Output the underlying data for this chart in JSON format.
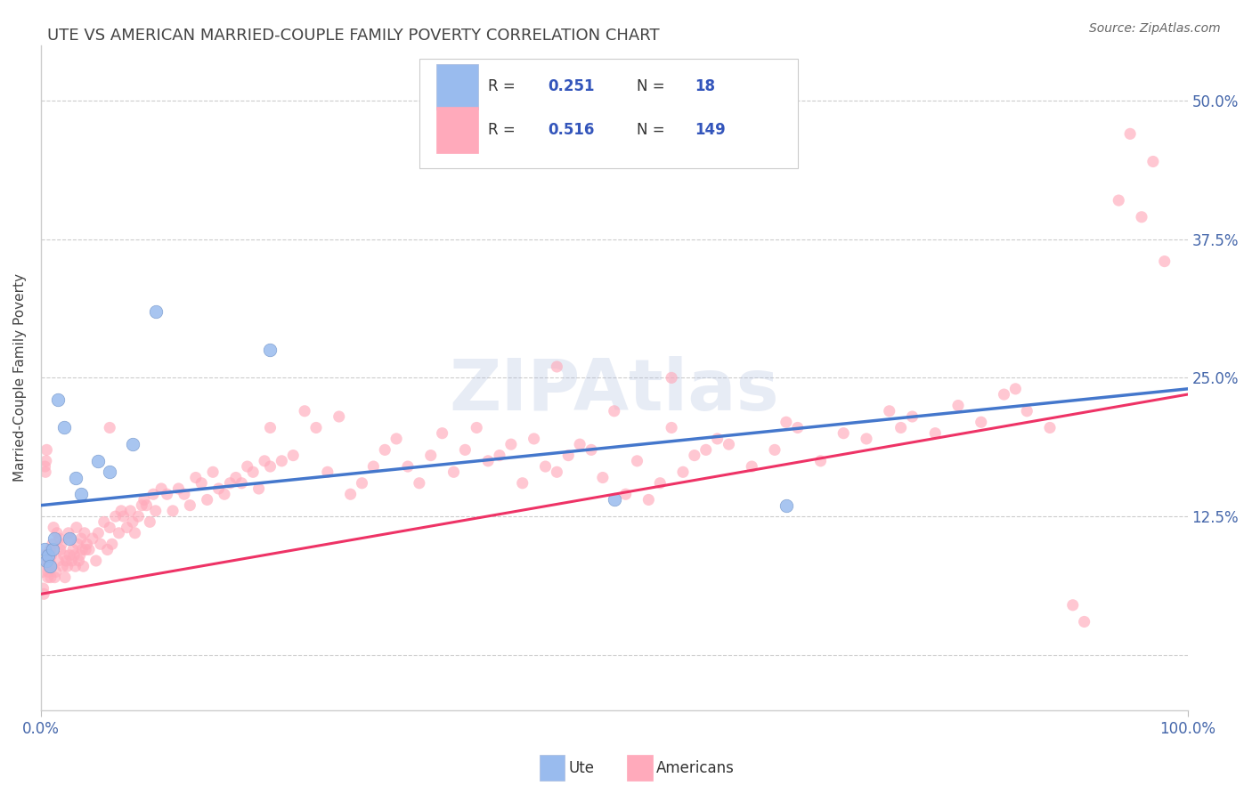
{
  "title": "UTE VS AMERICAN MARRIED-COUPLE FAMILY POVERTY CORRELATION CHART",
  "source_text": "Source: ZipAtlas.com",
  "ylabel": "Married-Couple Family Poverty",
  "xlim": [
    0.0,
    100.0
  ],
  "ylim": [
    -5.0,
    55.0
  ],
  "yticks": [
    0.0,
    12.5,
    25.0,
    37.5,
    50.0
  ],
  "ytick_labels": [
    "",
    "12.5%",
    "25.0%",
    "37.5%",
    "50.0%"
  ],
  "background_color": "#ffffff",
  "grid_color": "#cccccc",
  "color_ute": "#99bbee",
  "color_ute_edge": "#7799cc",
  "color_americans": "#ffaabb",
  "color_americans_edge": "#ff88aa",
  "color_ute_line": "#4477cc",
  "color_americans_line": "#ee3366",
  "color_ute_line_dashed": "#aaaacc",
  "title_color": "#444444",
  "title_fontsize": 13,
  "tick_label_color": "#4466aa",
  "legend_text_color_label": "#333333",
  "legend_text_color_value": "#3355bb",
  "ute_reg_x0": 0.0,
  "ute_reg_y0": 13.5,
  "ute_reg_x1": 100.0,
  "ute_reg_y1": 24.0,
  "americans_reg_x0": 0.0,
  "americans_reg_y0": 5.5,
  "americans_reg_x1": 100.0,
  "americans_reg_y1": 23.5,
  "ute_scatter": [
    [
      0.3,
      9.5
    ],
    [
      0.5,
      8.5
    ],
    [
      0.6,
      9.0
    ],
    [
      0.8,
      8.0
    ],
    [
      1.0,
      9.5
    ],
    [
      1.2,
      10.5
    ],
    [
      1.5,
      23.0
    ],
    [
      2.0,
      20.5
    ],
    [
      2.5,
      10.5
    ],
    [
      3.0,
      16.0
    ],
    [
      3.5,
      14.5
    ],
    [
      5.0,
      17.5
    ],
    [
      6.0,
      16.5
    ],
    [
      8.0,
      19.0
    ],
    [
      10.0,
      31.0
    ],
    [
      20.0,
      27.5
    ],
    [
      50.0,
      14.0
    ],
    [
      65.0,
      13.5
    ]
  ],
  "americans_scatter": [
    [
      0.1,
      8.5
    ],
    [
      0.15,
      7.5
    ],
    [
      0.2,
      6.0
    ],
    [
      0.25,
      5.5
    ],
    [
      0.3,
      9.0
    ],
    [
      0.35,
      17.0
    ],
    [
      0.4,
      16.5
    ],
    [
      0.45,
      17.5
    ],
    [
      0.5,
      18.5
    ],
    [
      0.55,
      8.5
    ],
    [
      0.6,
      7.0
    ],
    [
      0.65,
      7.5
    ],
    [
      0.7,
      8.0
    ],
    [
      0.75,
      8.5
    ],
    [
      0.8,
      9.5
    ],
    [
      0.85,
      7.0
    ],
    [
      0.9,
      9.0
    ],
    [
      0.95,
      8.0
    ],
    [
      1.0,
      10.0
    ],
    [
      1.1,
      11.5
    ],
    [
      1.2,
      7.0
    ],
    [
      1.3,
      7.5
    ],
    [
      1.4,
      11.0
    ],
    [
      1.5,
      8.5
    ],
    [
      1.6,
      10.5
    ],
    [
      1.7,
      9.5
    ],
    [
      1.8,
      10.0
    ],
    [
      1.9,
      8.0
    ],
    [
      2.0,
      9.0
    ],
    [
      2.1,
      7.0
    ],
    [
      2.2,
      8.5
    ],
    [
      2.3,
      8.0
    ],
    [
      2.4,
      11.0
    ],
    [
      2.5,
      9.0
    ],
    [
      2.6,
      10.5
    ],
    [
      2.7,
      8.5
    ],
    [
      2.8,
      9.5
    ],
    [
      2.9,
      9.0
    ],
    [
      3.0,
      8.0
    ],
    [
      3.1,
      11.5
    ],
    [
      3.2,
      10.0
    ],
    [
      3.3,
      8.5
    ],
    [
      3.4,
      9.0
    ],
    [
      3.5,
      10.5
    ],
    [
      3.6,
      9.5
    ],
    [
      3.7,
      8.0
    ],
    [
      3.8,
      11.0
    ],
    [
      3.9,
      9.5
    ],
    [
      4.0,
      10.0
    ],
    [
      4.2,
      9.5
    ],
    [
      4.5,
      10.5
    ],
    [
      4.8,
      8.5
    ],
    [
      5.0,
      11.0
    ],
    [
      5.2,
      10.0
    ],
    [
      5.5,
      12.0
    ],
    [
      5.8,
      9.5
    ],
    [
      6.0,
      11.5
    ],
    [
      6.2,
      10.0
    ],
    [
      6.5,
      12.5
    ],
    [
      6.8,
      11.0
    ],
    [
      7.0,
      13.0
    ],
    [
      7.2,
      12.5
    ],
    [
      7.5,
      11.5
    ],
    [
      7.8,
      13.0
    ],
    [
      8.0,
      12.0
    ],
    [
      8.2,
      11.0
    ],
    [
      8.5,
      12.5
    ],
    [
      8.8,
      13.5
    ],
    [
      9.0,
      14.0
    ],
    [
      9.2,
      13.5
    ],
    [
      9.5,
      12.0
    ],
    [
      9.8,
      14.5
    ],
    [
      10.0,
      13.0
    ],
    [
      10.5,
      15.0
    ],
    [
      11.0,
      14.5
    ],
    [
      11.5,
      13.0
    ],
    [
      12.0,
      15.0
    ],
    [
      12.5,
      14.5
    ],
    [
      13.0,
      13.5
    ],
    [
      13.5,
      16.0
    ],
    [
      14.0,
      15.5
    ],
    [
      14.5,
      14.0
    ],
    [
      15.0,
      16.5
    ],
    [
      15.5,
      15.0
    ],
    [
      16.0,
      14.5
    ],
    [
      16.5,
      15.5
    ],
    [
      17.0,
      16.0
    ],
    [
      17.5,
      15.5
    ],
    [
      18.0,
      17.0
    ],
    [
      18.5,
      16.5
    ],
    [
      19.0,
      15.0
    ],
    [
      19.5,
      17.5
    ],
    [
      20.0,
      17.0
    ],
    [
      21.0,
      17.5
    ],
    [
      22.0,
      18.0
    ],
    [
      23.0,
      22.0
    ],
    [
      24.0,
      20.5
    ],
    [
      25.0,
      16.5
    ],
    [
      26.0,
      21.5
    ],
    [
      27.0,
      14.5
    ],
    [
      28.0,
      15.5
    ],
    [
      29.0,
      17.0
    ],
    [
      30.0,
      18.5
    ],
    [
      31.0,
      19.5
    ],
    [
      32.0,
      17.0
    ],
    [
      33.0,
      15.5
    ],
    [
      34.0,
      18.0
    ],
    [
      35.0,
      20.0
    ],
    [
      36.0,
      16.5
    ],
    [
      37.0,
      18.5
    ],
    [
      38.0,
      20.5
    ],
    [
      39.0,
      17.5
    ],
    [
      40.0,
      18.0
    ],
    [
      41.0,
      19.0
    ],
    [
      42.0,
      15.5
    ],
    [
      43.0,
      19.5
    ],
    [
      44.0,
      17.0
    ],
    [
      45.0,
      16.5
    ],
    [
      46.0,
      18.0
    ],
    [
      47.0,
      19.0
    ],
    [
      48.0,
      18.5
    ],
    [
      49.0,
      16.0
    ],
    [
      50.0,
      22.0
    ],
    [
      51.0,
      14.5
    ],
    [
      52.0,
      17.5
    ],
    [
      53.0,
      14.0
    ],
    [
      54.0,
      15.5
    ],
    [
      55.0,
      20.5
    ],
    [
      56.0,
      16.5
    ],
    [
      57.0,
      18.0
    ],
    [
      58.0,
      18.5
    ],
    [
      59.0,
      19.5
    ],
    [
      60.0,
      19.0
    ],
    [
      62.0,
      17.0
    ],
    [
      64.0,
      18.5
    ],
    [
      66.0,
      20.5
    ],
    [
      68.0,
      17.5
    ],
    [
      70.0,
      20.0
    ],
    [
      72.0,
      19.5
    ],
    [
      74.0,
      22.0
    ],
    [
      76.0,
      21.5
    ],
    [
      78.0,
      20.0
    ],
    [
      80.0,
      22.5
    ],
    [
      82.0,
      21.0
    ],
    [
      84.0,
      23.5
    ],
    [
      86.0,
      22.0
    ],
    [
      88.0,
      20.5
    ],
    [
      90.0,
      4.5
    ],
    [
      91.0,
      3.0
    ],
    [
      94.0,
      41.0
    ],
    [
      95.0,
      47.0
    ],
    [
      96.0,
      39.5
    ],
    [
      97.0,
      44.5
    ],
    [
      98.0,
      35.5
    ],
    [
      55.0,
      25.0
    ],
    [
      65.0,
      21.0
    ],
    [
      75.0,
      20.5
    ],
    [
      85.0,
      24.0
    ],
    [
      6.0,
      20.5
    ],
    [
      20.0,
      20.5
    ],
    [
      45.0,
      26.0
    ]
  ]
}
